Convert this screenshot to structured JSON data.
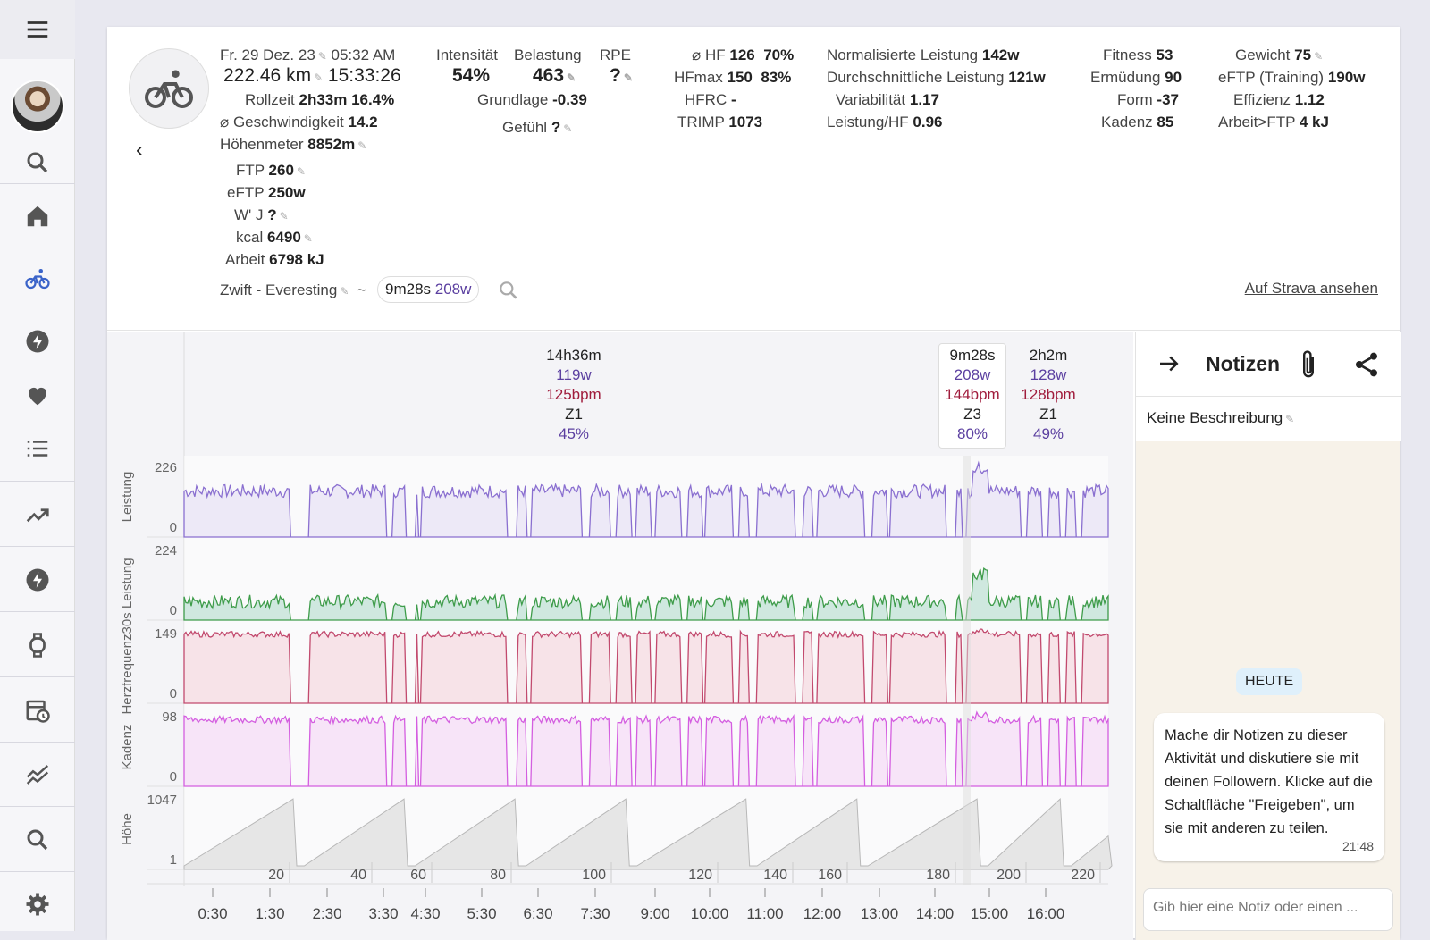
{
  "colors": {
    "power": "#8a6fd0",
    "power_fill": "#ede9f7",
    "w30": "#3e9c4a",
    "w30_fill": "#cfe8df",
    "hr": "#c24a6e",
    "hr_fill": "#f7e3e8",
    "cad": "#d45ee0",
    "cad_fill": "#f7e4f8",
    "alt": "#b8b8b8",
    "alt_fill": "#e6e6e6",
    "purple_text": "#5b3fa0",
    "red_text": "#a01c3c"
  },
  "sidebar": {
    "icons": [
      "menu-icon",
      "avatar",
      "search-icon",
      "home-icon",
      "bike-icon",
      "lightning-icon",
      "heart-icon",
      "list-icon",
      "trend-icon",
      "power-icon",
      "watch-icon",
      "calendar-icon",
      "fitness-icon",
      "search-icon",
      "settings-icon"
    ]
  },
  "header": {
    "date": "Fr. 29 Dez. 23",
    "time": "05:32 AM",
    "distance": "222.46 km",
    "duration": "15:33:26",
    "rollzeit_label": "Rollzeit",
    "rollzeit": "2h33m",
    "rollzeit_pct": "16.4%",
    "speed_label": "⌀ Geschwindigkeit",
    "speed": "14.2",
    "hm_label": "Höhenmeter",
    "hm": "8852m",
    "ftp_label": "FTP",
    "ftp": "260",
    "eftp_label": "eFTP",
    "eftp": "250w",
    "wj_label": "W' J",
    "wj": "?",
    "kcal_label": "kcal",
    "kcal": "6490",
    "arbeit_label": "Arbeit",
    "arbeit": "6798 kJ",
    "intens_label": "Intensität",
    "intens": "54%",
    "belast_label": "Belastung",
    "belast": "463",
    "rpe_label": "RPE",
    "rpe": "?",
    "grund_label": "Grundlage",
    "grund": "-0.39",
    "gefuehl_label": "Gefühl",
    "gefuehl": "?",
    "hf_label": "⌀ HF",
    "hf": "126",
    "hf_pct": "70%",
    "hfmax_label": "HFmax",
    "hfmax": "150",
    "hfmax_pct": "83%",
    "hfrc_label": "HFRC",
    "hfrc": "-",
    "trimp_label": "TRIMP",
    "trimp": "1073",
    "np_label": "Normalisierte Leistung",
    "np": "142w",
    "avgp_label": "Durchschnittliche Leistung",
    "avgp": "121w",
    "var_label": "Variabilität",
    "var": "1.17",
    "lhf_label": "Leistung/HF",
    "lhf": "0.96",
    "fit_label": "Fitness",
    "fit": "53",
    "erm_label": "Ermüdung",
    "erm": "90",
    "form_label": "Form",
    "form": "-37",
    "kad_label": "Kadenz",
    "kad": "85",
    "gew_label": "Gewicht",
    "gew": "75",
    "eftpt_label": "eFTP (Training)",
    "eftpt": "190w",
    "eff_label": "Effizienz",
    "eff": "1.12",
    "aftp_label": "Arbeit>FTP",
    "aftp": "4 kJ",
    "workout": "Zwift - Everesting",
    "tilde": "~",
    "chip_time": "9m28s",
    "chip_power": "208w",
    "strava": "Auf Strava ansehen"
  },
  "segments": [
    {
      "time": "14h36m",
      "power": "119w",
      "hr": "125bpm",
      "zone": "Z1",
      "pct": "45%"
    },
    {
      "time": "9m28s",
      "power": "208w",
      "hr": "144bpm",
      "zone": "Z3",
      "pct": "80%"
    },
    {
      "time": "2h2m",
      "power": "128w",
      "hr": "128bpm",
      "zone": "Z1",
      "pct": "49%"
    }
  ],
  "panels": [
    {
      "label": "Leistung",
      "max": "226",
      "min": "0"
    },
    {
      "label": "30s Leistung",
      "max": "224",
      "min": "0"
    },
    {
      "label": "Herzfrequenz",
      "max": "149",
      "min": "0"
    },
    {
      "label": "Kadenz",
      "max": "98",
      "min": "0"
    },
    {
      "label": "Höhe",
      "max": "1047",
      "min": "1"
    }
  ],
  "dist_ticks": [
    "20",
    "40",
    "60",
    "80",
    "100",
    "120",
    "140",
    "160",
    "180",
    "200",
    "220"
  ],
  "time_ticks": [
    "0:30",
    "1:30",
    "2:30",
    "3:30",
    "4:30",
    "5:30",
    "6:30",
    "7:30",
    "9:00",
    "10:00",
    "11:00",
    "12:00",
    "13:00",
    "14:00",
    "15:00",
    "16:00"
  ],
  "notes": {
    "title": "Notizen",
    "desc": "Keine Beschreibung",
    "today": "HEUTE",
    "message": "Mache dir Notizen zu dieser Aktivität und diskutiere sie mit deinen Followern. Klicke auf die Schaltfläche \"Freigeben\", um sie mit anderen zu teilen.",
    "msg_time": "21:48",
    "input_placeholder": "Gib hier eine Notiz oder einen ..."
  }
}
